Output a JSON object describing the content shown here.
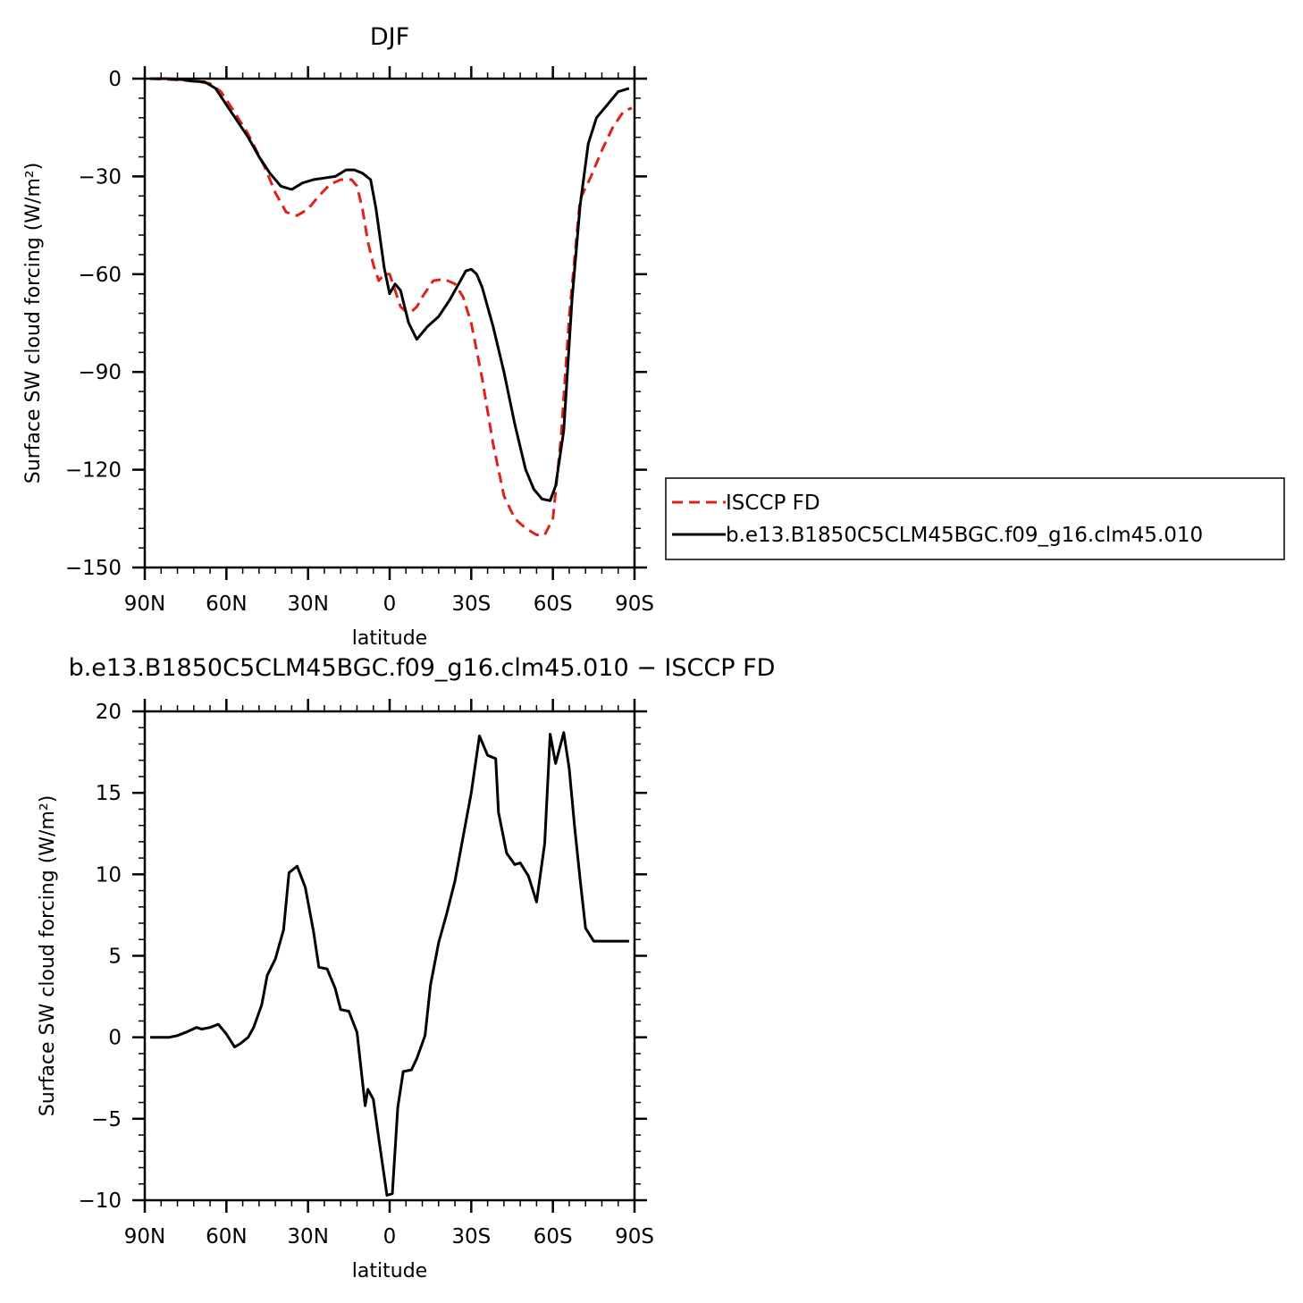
{
  "chart_data": [
    {
      "type": "line",
      "title": "DJF",
      "xlabel": "latitude",
      "ylabel": "Surface SW cloud forcing (W/m²)",
      "xlim": [
        90,
        -90
      ],
      "ylim": [
        -150,
        0
      ],
      "xticks": [
        {
          "value": 90,
          "label": "90N"
        },
        {
          "value": 60,
          "label": "60N"
        },
        {
          "value": 30,
          "label": "30N"
        },
        {
          "value": 0,
          "label": "0"
        },
        {
          "value": -30,
          "label": "30S"
        },
        {
          "value": -60,
          "label": "60S"
        },
        {
          "value": -90,
          "label": "90S"
        }
      ],
      "yticks": [
        {
          "value": 0,
          "label": "0"
        },
        {
          "value": -30,
          "label": "−30"
        },
        {
          "value": -60,
          "label": "−60"
        },
        {
          "value": -90,
          "label": "−90"
        },
        {
          "value": -120,
          "label": "−120"
        },
        {
          "value": -150,
          "label": "−150"
        }
      ],
      "legend": {
        "position": "right"
      },
      "series": [
        {
          "name": "ISCCP FD",
          "color": "#e0201b",
          "style": "dashed",
          "x": [
            88,
            82,
            76,
            70,
            66,
            62,
            58,
            52,
            46,
            42,
            38,
            34,
            30,
            26,
            22,
            18,
            14,
            12,
            10,
            8,
            6,
            4,
            2,
            0,
            -2,
            -4,
            -6,
            -8,
            -10,
            -12,
            -16,
            -20,
            -24,
            -27,
            -30,
            -34,
            -38,
            -42,
            -46,
            -50,
            -54,
            -57,
            -60,
            -63,
            -66,
            -70,
            -74,
            -78,
            -82,
            -86,
            -89
          ],
          "y": [
            0,
            -0.2,
            -0.5,
            -1,
            -1.5,
            -4,
            -9,
            -17,
            -27,
            -35,
            -41,
            -42,
            -40,
            -36,
            -32.5,
            -31,
            -31,
            -33,
            -40,
            -50,
            -57,
            -62,
            -60,
            -60,
            -65,
            -70,
            -71.5,
            -71.5,
            -70,
            -67,
            -62,
            -61.5,
            -63,
            -67,
            -75,
            -92,
            -112,
            -128,
            -135,
            -138,
            -140,
            -140,
            -135,
            -110,
            -73,
            -37,
            -30,
            -22,
            -15,
            -10,
            -9
          ]
        },
        {
          "name": "b.e13.B1850C5CLM45BGC.f09_g16.clm45.010",
          "color": "#000000",
          "style": "solid",
          "x": [
            88,
            82,
            76,
            72,
            68,
            64,
            60,
            56,
            52,
            48,
            44,
            40,
            36,
            32,
            28,
            24,
            20,
            18,
            16,
            13,
            10,
            7,
            5,
            2,
            0,
            -2,
            -4,
            -7,
            -10,
            -14,
            -18,
            -22,
            -26,
            -28,
            -30,
            -32,
            -34,
            -38,
            -42,
            -46,
            -50,
            -53,
            -56,
            -59,
            -61,
            -64,
            -67,
            -70,
            -73,
            -76,
            -80,
            -84,
            -88
          ],
          "y": [
            0,
            0,
            -0.3,
            -0.8,
            -1,
            -3,
            -8,
            -13,
            -18,
            -24,
            -29,
            -33,
            -34,
            -32,
            -31,
            -30.5,
            -30,
            -29,
            -28,
            -28,
            -29,
            -31,
            -40,
            -58,
            -66,
            -63,
            -65,
            -75,
            -80,
            -76,
            -73,
            -68,
            -62,
            -59,
            -58.5,
            -60,
            -64,
            -76,
            -90,
            -106,
            -120,
            -126,
            -129,
            -129.5,
            -125,
            -108,
            -68,
            -39,
            -20,
            -12,
            -8,
            -4,
            -3
          ]
        }
      ]
    },
    {
      "type": "line",
      "title": "b.e13.B1850C5CLM45BGC.f09_g16.clm45.010 − ISCCP FD",
      "xlabel": "latitude",
      "ylabel": "Surface SW cloud forcing (W/m²)",
      "xlim": [
        90,
        -90
      ],
      "ylim": [
        -10,
        20
      ],
      "xticks": [
        {
          "value": 90,
          "label": "90N"
        },
        {
          "value": 60,
          "label": "60N"
        },
        {
          "value": 30,
          "label": "30N"
        },
        {
          "value": 0,
          "label": "0"
        },
        {
          "value": -30,
          "label": "30S"
        },
        {
          "value": -60,
          "label": "60S"
        },
        {
          "value": -90,
          "label": "90S"
        }
      ],
      "yticks": [
        {
          "value": 20,
          "label": "20"
        },
        {
          "value": 15,
          "label": "15"
        },
        {
          "value": 10,
          "label": "10"
        },
        {
          "value": 5,
          "label": "5"
        },
        {
          "value": 0,
          "label": "0"
        },
        {
          "value": -5,
          "label": "−5"
        },
        {
          "value": -10,
          "label": "−10"
        }
      ],
      "series": [
        {
          "color": "#000000",
          "style": "solid",
          "x": [
            88,
            84,
            81,
            78,
            75,
            71,
            69,
            66,
            63,
            60,
            57,
            55,
            52,
            50,
            47,
            45,
            42,
            39,
            37,
            34,
            31,
            28,
            26,
            23,
            20,
            18,
            15,
            12,
            9,
            8,
            6,
            4,
            1,
            -1,
            -3,
            -5,
            -8,
            -10,
            -13,
            -15,
            -18,
            -21,
            -24,
            -27,
            -30,
            -33,
            -36,
            -39,
            -40,
            -43,
            -46,
            -48,
            -51,
            -54,
            -57,
            -59,
            -61,
            -64,
            -66,
            -68,
            -70,
            -72,
            -75,
            -77,
            -80,
            -82,
            -85,
            -88
          ],
          "y": [
            0,
            0,
            0,
            0.1,
            0.3,
            0.6,
            0.5,
            0.6,
            0.8,
            0.2,
            -0.6,
            -0.4,
            0,
            0.6,
            2,
            3.8,
            4.8,
            6.6,
            10.1,
            10.5,
            9.2,
            6.5,
            4.3,
            4.2,
            3,
            1.7,
            1.6,
            0.3,
            -4.2,
            -3.2,
            -3.8,
            -6.2,
            -9.7,
            -9.6,
            -4.3,
            -2.1,
            -2,
            -1.3,
            0.1,
            3.2,
            5.8,
            7.6,
            9.6,
            12.3,
            15,
            18.5,
            17.3,
            17.1,
            13.8,
            11.3,
            10.6,
            10.7,
            9.9,
            8.3,
            11.9,
            18.6,
            16.8,
            18.7,
            16.5,
            12.9,
            9.7,
            6.7,
            5.9,
            5.9,
            5.9,
            5.9,
            5.9,
            5.9
          ]
        }
      ]
    }
  ]
}
